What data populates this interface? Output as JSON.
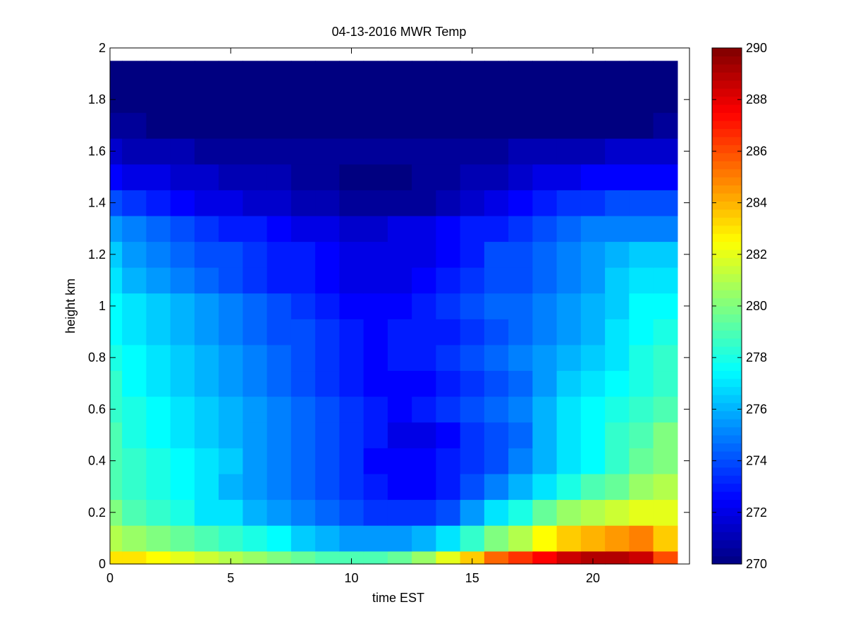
{
  "chart_data": {
    "type": "heatmap",
    "title": "04-13-2016 MWR Temp",
    "xlabel": "time EST",
    "ylabel": "height km",
    "xlim": [
      0,
      24
    ],
    "ylim": [
      0,
      2
    ],
    "xticks": [
      0,
      5,
      10,
      15,
      20
    ],
    "yticks": [
      0,
      0.2,
      0.4,
      0.6,
      0.8,
      1,
      1.2,
      1.4,
      1.6,
      1.8,
      2
    ],
    "colorbar": {
      "min": 270,
      "max": 290,
      "ticks": [
        270,
        272,
        274,
        276,
        278,
        280,
        282,
        284,
        286,
        288,
        290
      ],
      "colormap": "jet"
    },
    "x": [
      0,
      1,
      2,
      3,
      4,
      5,
      6,
      7,
      8,
      9,
      10,
      11,
      12,
      13,
      14,
      15,
      16,
      17,
      18,
      19,
      20,
      21,
      22,
      23
    ],
    "heights": [
      0,
      0.1,
      0.2,
      0.3,
      0.4,
      0.5,
      0.6,
      0.7,
      0.8,
      0.9,
      1.0,
      1.1,
      1.2,
      1.3,
      1.4,
      1.5,
      1.6,
      1.7,
      1.8,
      1.9
    ],
    "z": [
      [
        283,
        283,
        282.5,
        282,
        281.5,
        281,
        280.5,
        280,
        279.5,
        279,
        279,
        279,
        279.5,
        280.5,
        282,
        283.5,
        285.5,
        286.5,
        287.5,
        288.5,
        289,
        289,
        288.5,
        286
      ],
      [
        281,
        280.5,
        280,
        279.5,
        279,
        278.5,
        278,
        277.5,
        276.5,
        276,
        275.5,
        275.5,
        275.5,
        276,
        277,
        278.5,
        280,
        281,
        282.5,
        283.5,
        284,
        284.5,
        285,
        283.5
      ],
      [
        280,
        279,
        278.5,
        278,
        277,
        277,
        276,
        275.5,
        275,
        274.5,
        274,
        273.5,
        273.5,
        273.5,
        274,
        275.5,
        277,
        278,
        279.5,
        280.5,
        281,
        281.5,
        282,
        282
      ],
      [
        279,
        278.5,
        278,
        277.5,
        277,
        276,
        275.5,
        275,
        274.5,
        274,
        273.5,
        273,
        272.5,
        272.5,
        273,
        274,
        275,
        276,
        277,
        278,
        279,
        279.5,
        280.5,
        281
      ],
      [
        279,
        278.5,
        278,
        277.5,
        277,
        276.5,
        275.5,
        275,
        274.5,
        274,
        273.5,
        272.5,
        272.5,
        272.5,
        273,
        273.5,
        274,
        275,
        276,
        277,
        277.5,
        278.5,
        279.5,
        280
      ],
      [
        279,
        278,
        277.5,
        277,
        276.5,
        276,
        275.5,
        275,
        274.5,
        274,
        273.5,
        273,
        272,
        272,
        272.5,
        273.5,
        274,
        274.5,
        276,
        277,
        277.5,
        278.5,
        279,
        280
      ],
      [
        278.5,
        278,
        277.5,
        277,
        276.5,
        276,
        275.5,
        275,
        274.5,
        274,
        273.5,
        273,
        272.5,
        273,
        273.5,
        274,
        274.5,
        275,
        276,
        277,
        277.5,
        278,
        278.5,
        279
      ],
      [
        278.5,
        277.5,
        277,
        276.5,
        276,
        275.5,
        275,
        274.5,
        274,
        273.5,
        273,
        272.5,
        272.5,
        272.5,
        273,
        273.5,
        274,
        274.5,
        275.5,
        276.5,
        277,
        277.5,
        278,
        278.5
      ],
      [
        278,
        277.5,
        277,
        276.5,
        276,
        275.5,
        275,
        274.5,
        274,
        273.5,
        273,
        272.5,
        273,
        273,
        273.5,
        274,
        274.5,
        275,
        275.5,
        276,
        276.5,
        277,
        278,
        278.5
      ],
      [
        277.5,
        277,
        276.5,
        276,
        275.5,
        275,
        274.5,
        274,
        274,
        273.5,
        273,
        272.5,
        273,
        273,
        273,
        273.5,
        274,
        274.5,
        275,
        275.5,
        276,
        277,
        277.5,
        278
      ],
      [
        277.5,
        277,
        276.5,
        276,
        275.5,
        275,
        274.5,
        274,
        273.5,
        273,
        272.5,
        272.5,
        272.5,
        273,
        273.5,
        274,
        274.5,
        274.5,
        275,
        275.5,
        276,
        276.5,
        277.5,
        277.5
      ],
      [
        277,
        276,
        275.5,
        275,
        274.5,
        274,
        273.5,
        273,
        273,
        272.5,
        272,
        272,
        272,
        272.5,
        273,
        273.5,
        274,
        274,
        274.5,
        275,
        275.5,
        276.5,
        277,
        277
      ],
      [
        276.5,
        275.5,
        275,
        274.5,
        274,
        274,
        273.5,
        273,
        273,
        272.5,
        272,
        272,
        272,
        272,
        272.5,
        273,
        274,
        274,
        274.5,
        275,
        275.5,
        276,
        276.5,
        276.5
      ],
      [
        275.5,
        275,
        274.5,
        274,
        273.5,
        273,
        273,
        272.5,
        272,
        272,
        271.5,
        271.5,
        272,
        272,
        272.5,
        273,
        273,
        273.5,
        274,
        274.5,
        275,
        275,
        275,
        275
      ],
      [
        274,
        273.5,
        273,
        272.5,
        272,
        272,
        271.5,
        271.5,
        271,
        271,
        270.5,
        270.5,
        270.5,
        270.5,
        271,
        271.5,
        272,
        272.5,
        273,
        273.5,
        273.5,
        274,
        274,
        274
      ],
      [
        272.5,
        272,
        272,
        271.5,
        271.5,
        271,
        271,
        271,
        270.5,
        270.5,
        270,
        270,
        270,
        270.5,
        270.5,
        271,
        271,
        271.5,
        272,
        272,
        272.5,
        272.5,
        272.5,
        272.5
      ],
      [
        271.5,
        271,
        271,
        271,
        270.5,
        270.5,
        270.5,
        270.5,
        270.5,
        270.5,
        270.5,
        270.5,
        270.5,
        270.5,
        270.5,
        270.5,
        270.5,
        271,
        271,
        271,
        271,
        271.5,
        271.5,
        271.5
      ],
      [
        270.5,
        270.5,
        270,
        270,
        270,
        270,
        270,
        270,
        270,
        270,
        270,
        270,
        270,
        270,
        270,
        270,
        270,
        270,
        270,
        270,
        270,
        270,
        270,
        270.5
      ],
      [
        270,
        270,
        270,
        270,
        270,
        270,
        270,
        270,
        270,
        270,
        270,
        270,
        270,
        270,
        270,
        270,
        270,
        270,
        270,
        270,
        270,
        270,
        270,
        270
      ],
      [
        270,
        270,
        270,
        270,
        270,
        270,
        270,
        270,
        270,
        270,
        270,
        270,
        270,
        270,
        270,
        270,
        270,
        270,
        270,
        270,
        270,
        270,
        270,
        270
      ]
    ]
  }
}
